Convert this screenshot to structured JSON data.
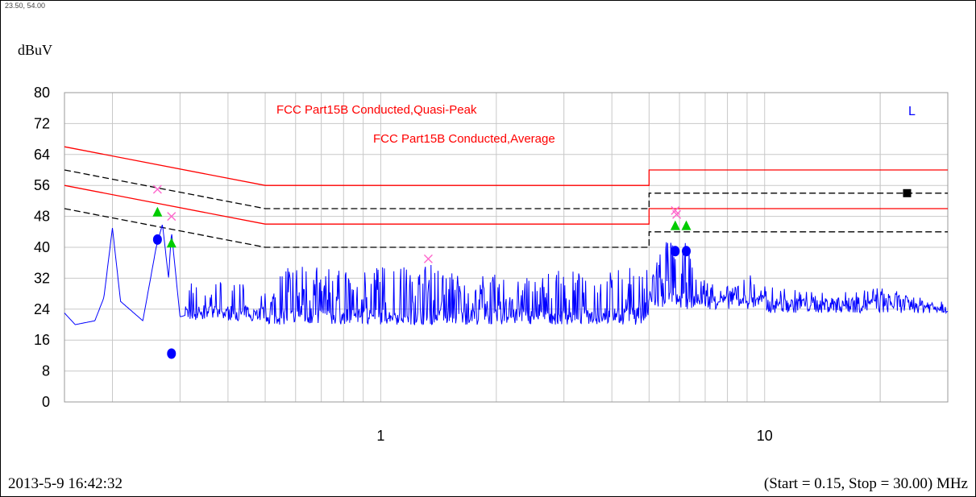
{
  "header": {
    "coordinate_readout": "23.50, 54.00"
  },
  "footer": {
    "timestamp": "2013-5-9 16:42:32",
    "range": "(Start = 0.15, Stop = 30.00) MHz"
  },
  "chart_data": {
    "type": "line",
    "ylabel": "dBuV",
    "ylim": [
      0,
      80
    ],
    "xlim": [
      0.15,
      30
    ],
    "x_scale": "log",
    "y_ticks": [
      0,
      8,
      16,
      24,
      32,
      40,
      48,
      56,
      64,
      72,
      80
    ],
    "x_tick_labels": [
      {
        "value": 1,
        "label": "1"
      },
      {
        "value": 10,
        "label": "10"
      }
    ],
    "grid": true,
    "corner_marker": "L",
    "colors": {
      "trace": "#0000ff",
      "limit": "#ff0000",
      "limit_dashed": "#000000",
      "qp_marker": "#ff66cc",
      "avg_marker": "#00cc00",
      "dot": "#0000ff"
    },
    "series": [
      {
        "name": "FCC Part15B Conducted,Quasi-Peak",
        "color": "#ff0000",
        "style": "solid",
        "points": [
          [
            0.15,
            66
          ],
          [
            0.5,
            56
          ],
          [
            5,
            56
          ],
          [
            5,
            60
          ],
          [
            30,
            60
          ]
        ]
      },
      {
        "name": "FCC Part15B Conducted,Average",
        "color": "#ff0000",
        "style": "solid",
        "points": [
          [
            0.15,
            56
          ],
          [
            0.5,
            46
          ],
          [
            5,
            46
          ],
          [
            5,
            50
          ],
          [
            30,
            50
          ]
        ]
      },
      {
        "style": "dashed",
        "color": "#000000",
        "points": [
          [
            0.15,
            60
          ],
          [
            0.5,
            50
          ],
          [
            5,
            50
          ],
          [
            5,
            54
          ],
          [
            30,
            54
          ]
        ]
      },
      {
        "style": "dashed",
        "color": "#000000",
        "points": [
          [
            0.15,
            50
          ],
          [
            0.5,
            40
          ],
          [
            5,
            40
          ],
          [
            5,
            44
          ],
          [
            30,
            44
          ]
        ]
      }
    ],
    "trace_peaks": [
      [
        0.15,
        23
      ],
      [
        0.16,
        20
      ],
      [
        0.18,
        21
      ],
      [
        0.19,
        27
      ],
      [
        0.2,
        45
      ],
      [
        0.21,
        26
      ],
      [
        0.24,
        21
      ],
      [
        0.26,
        40
      ],
      [
        0.27,
        46
      ],
      [
        0.28,
        32
      ],
      [
        0.285,
        44
      ],
      [
        0.3,
        22
      ],
      [
        0.35,
        24
      ],
      [
        0.4,
        28
      ],
      [
        0.45,
        30
      ],
      [
        0.5,
        24
      ],
      [
        0.56,
        37
      ],
      [
        0.62,
        36
      ],
      [
        0.7,
        35
      ],
      [
        0.8,
        34
      ],
      [
        1.0,
        36
      ],
      [
        1.2,
        35
      ],
      [
        1.33,
        36
      ],
      [
        1.5,
        34
      ],
      [
        2.0,
        33
      ],
      [
        3.0,
        34
      ],
      [
        4.0,
        34
      ],
      [
        5.0,
        36
      ],
      [
        5.6,
        44
      ],
      [
        6.0,
        42
      ],
      [
        6.3,
        41
      ],
      [
        6.6,
        36
      ],
      [
        7.0,
        32
      ],
      [
        8.0,
        30
      ],
      [
        9.0,
        34
      ],
      [
        10.0,
        30
      ],
      [
        15.0,
        28
      ],
      [
        20.0,
        30
      ],
      [
        25.0,
        27
      ],
      [
        30.0,
        24
      ]
    ],
    "qp_markers": [
      [
        0.262,
        55
      ],
      [
        0.285,
        48
      ],
      [
        1.33,
        37
      ],
      [
        5.85,
        49.5
      ],
      [
        5.9,
        48.5
      ]
    ],
    "avg_markers": [
      [
        0.262,
        49
      ],
      [
        0.285,
        41
      ],
      [
        5.85,
        45.5
      ],
      [
        6.25,
        45.5
      ]
    ],
    "dot_markers": [
      [
        0.262,
        42
      ],
      [
        5.85,
        39
      ],
      [
        6.25,
        39
      ],
      [
        0.285,
        12.5
      ]
    ],
    "square_markers": [
      [
        23.5,
        54
      ]
    ]
  }
}
